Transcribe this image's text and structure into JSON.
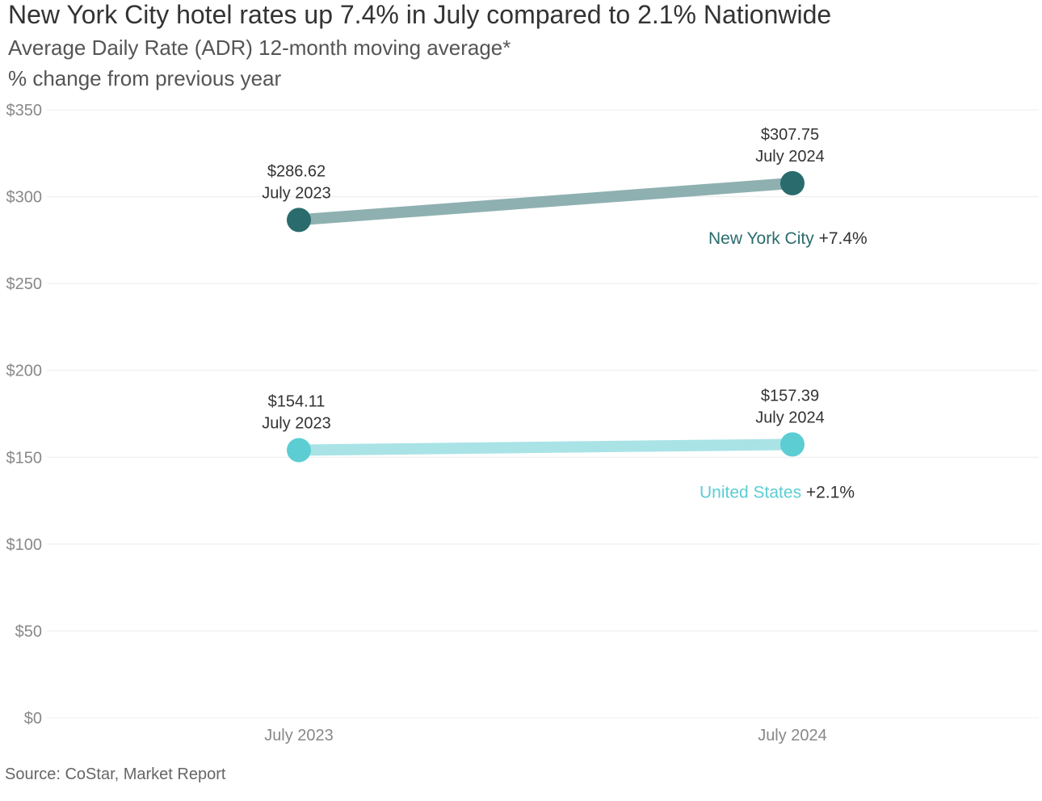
{
  "title": "New York City hotel rates up 7.4% in July compared to 2.1% Nationwide",
  "subtitle_lines": [
    "Average Daily Rate (ADR) 12-month moving average*",
    "% change from previous year"
  ],
  "source": "Source: CoStar, Market Report",
  "colors": {
    "nyc_point": "#2a6b6d",
    "nyc_line": "#8fb0b1",
    "us_point": "#5ccdd3",
    "us_line": "#a9e3e6",
    "grid": "#ececec",
    "nyc_name": "#2a6b6d",
    "us_name": "#5ccdd3"
  },
  "chart_data": {
    "type": "line",
    "categories": [
      "July 2023",
      "July 2024"
    ],
    "y_tick_labels": [
      "$0",
      "$50",
      "$100",
      "$150",
      "$200",
      "$250",
      "$300",
      "$350"
    ],
    "y_tick_values": [
      0,
      50,
      100,
      150,
      200,
      250,
      300,
      350
    ],
    "ylim": [
      0,
      350
    ],
    "grid": true,
    "series": [
      {
        "name": "New York City",
        "change": "+7.4%",
        "values": [
          286.62,
          307.75
        ],
        "value_labels": [
          "$286.62",
          "$307.75"
        ],
        "point_labels": [
          "July 2023",
          "July 2024"
        ]
      },
      {
        "name": "United States",
        "change": "+2.1%",
        "values": [
          154.11,
          157.39
        ],
        "value_labels": [
          "$154.11",
          "$157.39"
        ],
        "point_labels": [
          "July 2023",
          "July 2024"
        ]
      }
    ]
  }
}
